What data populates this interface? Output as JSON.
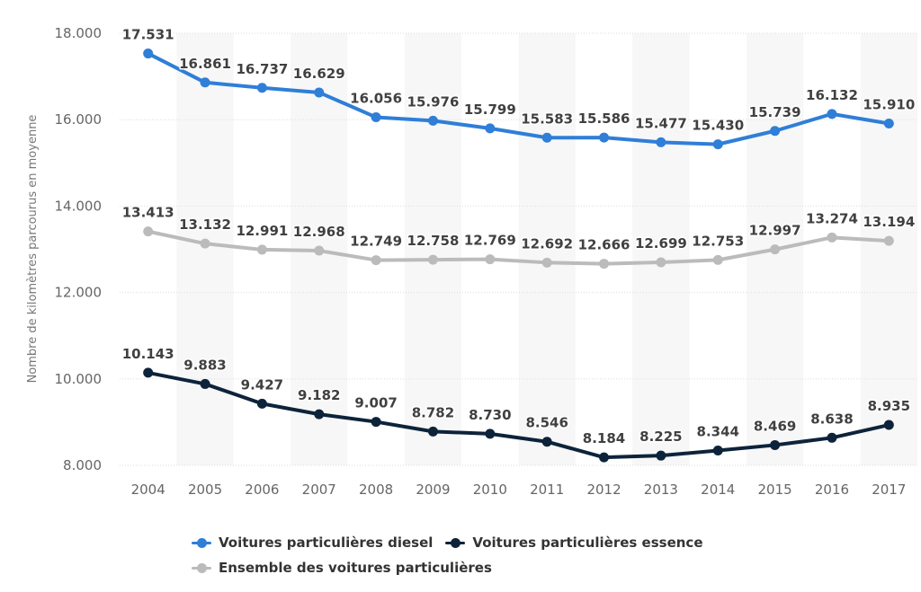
{
  "chart_data": {
    "type": "line",
    "title": "",
    "xlabel": "",
    "ylabel": "Nombre de kilomètres parcourus en moyenne",
    "categories": [
      "2004",
      "2005",
      "2006",
      "2007",
      "2008",
      "2009",
      "2010",
      "2011",
      "2012",
      "2013",
      "2014",
      "2015",
      "2016",
      "2017"
    ],
    "ylim": [
      8000,
      18000
    ],
    "yticks": [
      8000,
      10000,
      12000,
      14000,
      16000,
      18000
    ],
    "ytick_labels": [
      "8.000",
      "10.000",
      "12.000",
      "14.000",
      "16.000",
      "18.000"
    ],
    "grid": true,
    "legend_position": "bottom",
    "series": [
      {
        "name": "Voitures particulières diesel",
        "color": "#2f7ed8",
        "values": [
          17531,
          16861,
          16737,
          16629,
          16056,
          15976,
          15799,
          15583,
          15586,
          15477,
          15430,
          15739,
          16132,
          15910
        ],
        "labels": [
          "17.531",
          "16.861",
          "16.737",
          "16.629",
          "16.056",
          "15.976",
          "15.799",
          "15.583",
          "15.586",
          "15.477",
          "15.430",
          "15.739",
          "16.132",
          "15.910"
        ]
      },
      {
        "name": "Voitures particulières essence",
        "color": "#0d233a",
        "values": [
          10143,
          9883,
          9427,
          9182,
          9007,
          8782,
          8730,
          8546,
          8184,
          8225,
          8344,
          8469,
          8638,
          8935
        ],
        "labels": [
          "10.143",
          "9.883",
          "9.427",
          "9.182",
          "9.007",
          "8.782",
          "8.730",
          "8.546",
          "8.184",
          "8.225",
          "8.344",
          "8.469",
          "8.638",
          "8.935"
        ]
      },
      {
        "name": "Ensemble des voitures particulières",
        "color": "#bbbbbb",
        "values": [
          13413,
          13132,
          12991,
          12968,
          12749,
          12758,
          12769,
          12692,
          12666,
          12699,
          12753,
          12997,
          13274,
          13194
        ],
        "labels": [
          "13.413",
          "13.132",
          "12.991",
          "12.968",
          "12.749",
          "12.758",
          "12.769",
          "12.692",
          "12.666",
          "12.699",
          "12.753",
          "12.997",
          "13.274",
          "13.194"
        ]
      }
    ]
  }
}
